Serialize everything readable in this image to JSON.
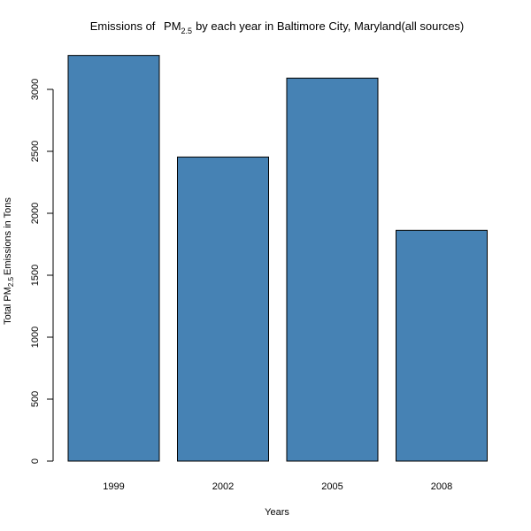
{
  "chart_data": {
    "type": "bar",
    "title_prefix": "Emissions of",
    "title_pm": "PM",
    "title_sub": "2.5",
    "title_suffix": "by each year in Baltimore City, Maryland(all sources)",
    "xlabel": "Years",
    "ylabel_prefix": "Total PM",
    "ylabel_sub": "2.5",
    "ylabel_suffix": "Emissions in Tons",
    "categories": [
      "1999",
      "2002",
      "2005",
      "2008"
    ],
    "values": [
      3274,
      2454,
      3091,
      1862
    ],
    "ylim": [
      0,
      3300
    ],
    "yticks": [
      0,
      500,
      1000,
      1500,
      2000,
      2500,
      3000
    ],
    "grid": false,
    "legend": "none",
    "bar_color": "#4682B4"
  }
}
